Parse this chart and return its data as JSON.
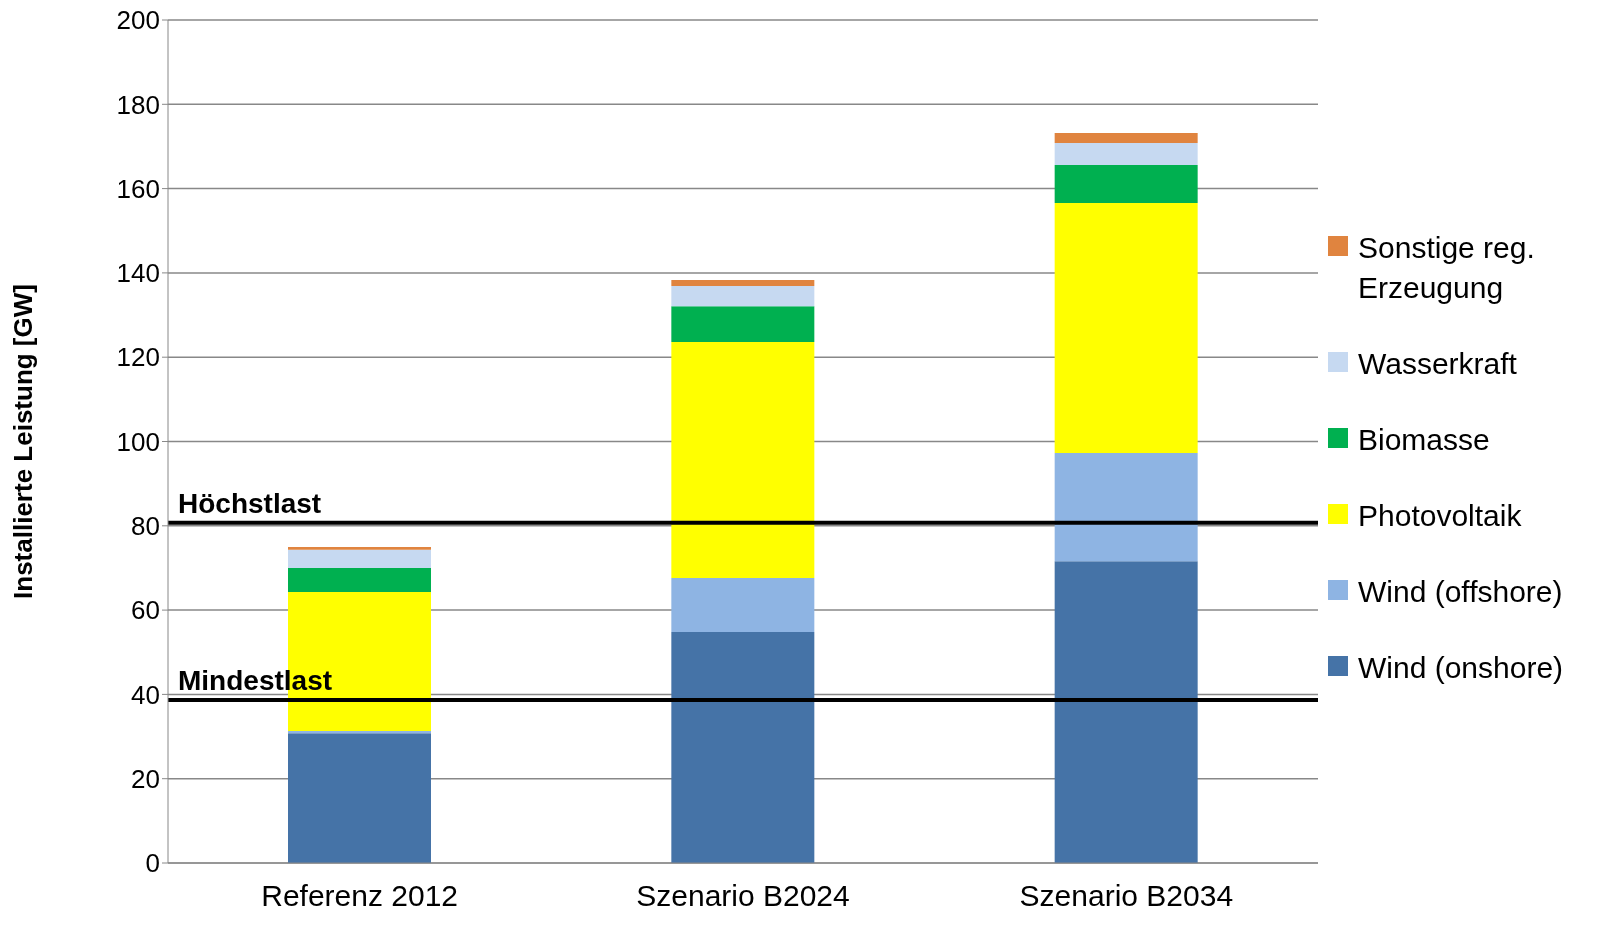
{
  "chart_data": {
    "type": "bar",
    "stacked": true,
    "ylabel": "Installierte Leistung [GW]",
    "categories": [
      "Referenz 2012",
      "Szenario B2024",
      "Szenario B2034"
    ],
    "series": [
      {
        "name": "Wind (onshore)",
        "color": "#4573a7",
        "values": [
          30.8,
          54.8,
          71.6
        ]
      },
      {
        "name": "Wind (offshore)",
        "color": "#8eb4e3",
        "values": [
          0.5,
          12.8,
          25.7
        ]
      },
      {
        "name": "Photovoltaik",
        "color": "#ffff00",
        "values": [
          33,
          56,
          59.3
        ]
      },
      {
        "name": "Biomasse",
        "color": "#00b050",
        "values": [
          5.7,
          8.5,
          9
        ]
      },
      {
        "name": "Wasserkraft",
        "color": "#c6d9f1",
        "values": [
          4.3,
          4.8,
          5.2
        ]
      },
      {
        "name": "Sonstige reg. Erzeugung",
        "color": "#e0843f",
        "values": [
          0.7,
          1.4,
          2.4
        ]
      }
    ],
    "ylim": [
      0,
      200
    ],
    "yticks": [
      0,
      20,
      40,
      60,
      80,
      100,
      120,
      140,
      160,
      180,
      200
    ],
    "grid": "y",
    "legend": "right",
    "ref_lines": [
      {
        "axis": "y",
        "value": 80.7,
        "label": "Höchstlast",
        "color": "#000000"
      },
      {
        "axis": "y",
        "value": 38.7,
        "label": "Mindestlast",
        "color": "#000000"
      }
    ]
  }
}
